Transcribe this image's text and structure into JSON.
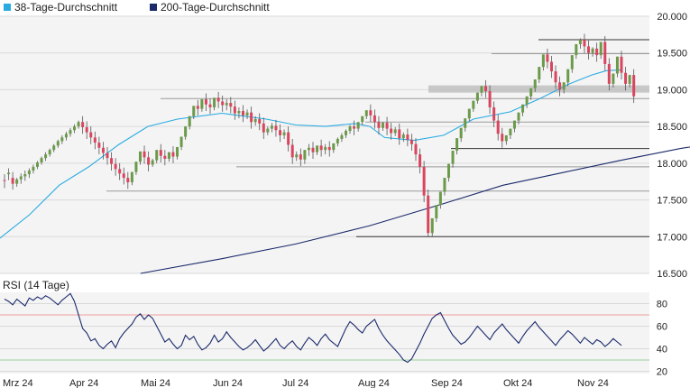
{
  "chart_data": [
    {
      "type": "candlestick",
      "title": "",
      "legend": {
        "placement": "top-left",
        "items": [
          {
            "name": "38-Tage-Durchschnitt",
            "color": "#29abe2"
          },
          {
            "name": "200-Tage-Durchschnitt",
            "color": "#1b2a6b"
          }
        ]
      },
      "y_axis": {
        "ticks": [
          "20.000",
          "19.500",
          "19.000",
          "18.500",
          "18.000",
          "17.500",
          "17.000",
          "16.500"
        ],
        "ylim": [
          16500,
          20000
        ],
        "tick_values": [
          20000,
          19500,
          19000,
          18500,
          18000,
          17500,
          17000,
          16500
        ]
      },
      "x_axis": {
        "labels": [
          "Mrz 24",
          "Apr 24",
          "Mai 24",
          "Jun 24",
          "Jul 24",
          "Aug 24",
          "Sep 24",
          "Okt 24",
          "Nov 24"
        ]
      },
      "colors": {
        "up": "#6b9a4a",
        "down": "#d9455f",
        "grid": "#d9d9d9",
        "support": "#555555",
        "band": "#bdbdbd"
      },
      "horizontal_levels": [
        19680,
        19490,
        19010,
        18880,
        18560,
        18200,
        17950,
        17620,
        17000
      ],
      "ma38_keypoints": [
        [
          0,
          16980
        ],
        [
          20,
          17300
        ],
        [
          40,
          17700
        ],
        [
          60,
          17950
        ],
        [
          80,
          18250
        ],
        [
          100,
          18500
        ],
        [
          120,
          18600
        ],
        [
          150,
          18680
        ],
        [
          180,
          18600
        ],
        [
          200,
          18520
        ],
        [
          220,
          18500
        ],
        [
          240,
          18540
        ],
        [
          250,
          18500
        ],
        [
          260,
          18350
        ],
        [
          280,
          18310
        ],
        [
          300,
          18380
        ],
        [
          320,
          18600
        ],
        [
          345,
          18700
        ],
        [
          365,
          18880
        ],
        [
          385,
          19080
        ],
        [
          400,
          19200
        ],
        [
          410,
          19260
        ],
        [
          420,
          19270
        ]
      ],
      "ma200_keypoints": [
        [
          95,
          16500
        ],
        [
          150,
          16700
        ],
        [
          200,
          16900
        ],
        [
          250,
          17150
        ],
        [
          300,
          17450
        ],
        [
          340,
          17700
        ],
        [
          380,
          17870
        ],
        [
          420,
          18040
        ],
        [
          460,
          18200
        ],
        [
          500,
          18330
        ],
        [
          527,
          18410
        ]
      ],
      "candles": [
        [
          17770,
          17850,
          17760,
          17660
        ],
        [
          17850,
          17930,
          17870,
          17770
        ],
        [
          17800,
          17880,
          17720,
          17640
        ],
        [
          17720,
          17800,
          17780,
          17680
        ],
        [
          17780,
          17860,
          17820,
          17720
        ],
        [
          17820,
          17900,
          17850,
          17760
        ],
        [
          17850,
          17930,
          17900,
          17800
        ],
        [
          17900,
          17980,
          17950,
          17860
        ],
        [
          17950,
          18030,
          18010,
          17920
        ],
        [
          18010,
          18090,
          18070,
          17980
        ],
        [
          18070,
          18150,
          18120,
          18030
        ],
        [
          18120,
          18200,
          18180,
          18090
        ],
        [
          18180,
          18260,
          18240,
          18150
        ],
        [
          18240,
          18320,
          18300,
          18210
        ],
        [
          18300,
          18380,
          18350,
          18260
        ],
        [
          18350,
          18430,
          18400,
          18310
        ],
        [
          18400,
          18480,
          18450,
          18360
        ],
        [
          18450,
          18530,
          18500,
          18410
        ],
        [
          18500,
          18580,
          18560,
          18470
        ],
        [
          18560,
          18640,
          18490,
          18400
        ],
        [
          18490,
          18570,
          18420,
          18330
        ],
        [
          18420,
          18500,
          18350,
          18260
        ],
        [
          18350,
          18430,
          18280,
          18190
        ],
        [
          18280,
          18360,
          18210,
          18120
        ],
        [
          18210,
          18290,
          18140,
          18050
        ],
        [
          18140,
          18220,
          18070,
          17980
        ],
        [
          18070,
          18150,
          17990,
          17900
        ],
        [
          17990,
          18070,
          17920,
          17830
        ],
        [
          17920,
          18000,
          17860,
          17770
        ],
        [
          17860,
          17940,
          17800,
          17710
        ],
        [
          17800,
          17880,
          17740,
          17650
        ],
        [
          17740,
          17820,
          17880,
          17700
        ],
        [
          17880,
          17960,
          18020,
          17840
        ],
        [
          18020,
          18100,
          18160,
          17980
        ],
        [
          18160,
          18240,
          18080,
          17990
        ],
        [
          18080,
          18160,
          17980,
          17890
        ],
        [
          17980,
          18060,
          18040,
          17950
        ],
        [
          18040,
          18120,
          18180,
          18000
        ],
        [
          18180,
          18260,
          18100,
          18010
        ],
        [
          18100,
          18180,
          18060,
          17970
        ],
        [
          18060,
          18140,
          18150,
          18020
        ],
        [
          18150,
          18230,
          18090,
          18000
        ],
        [
          18090,
          18170,
          18220,
          18050
        ],
        [
          18220,
          18300,
          18360,
          18180
        ],
        [
          18360,
          18440,
          18500,
          18320
        ],
        [
          18500,
          18580,
          18640,
          18460
        ],
        [
          18640,
          18720,
          18780,
          18600
        ],
        [
          18780,
          18860,
          18740,
          18650
        ],
        [
          18740,
          18820,
          18870,
          18700
        ],
        [
          18870,
          18950,
          18800,
          18710
        ],
        [
          18800,
          18880,
          18760,
          18670
        ],
        [
          18760,
          18840,
          18890,
          18720
        ],
        [
          18890,
          18970,
          18840,
          18750
        ],
        [
          18840,
          18920,
          18790,
          18700
        ],
        [
          18790,
          18870,
          18820,
          18720
        ],
        [
          18820,
          18900,
          18770,
          18680
        ],
        [
          18770,
          18850,
          18680,
          18590
        ],
        [
          18680,
          18760,
          18710,
          18610
        ],
        [
          18710,
          18790,
          18650,
          18560
        ],
        [
          18650,
          18730,
          18690,
          18600
        ],
        [
          18690,
          18770,
          18560,
          18470
        ],
        [
          18560,
          18640,
          18600,
          18510
        ],
        [
          18600,
          18680,
          18540,
          18450
        ],
        [
          18540,
          18620,
          18420,
          18330
        ],
        [
          18420,
          18500,
          18470,
          18380
        ],
        [
          18470,
          18550,
          18510,
          18420
        ],
        [
          18510,
          18590,
          18450,
          18360
        ],
        [
          18450,
          18530,
          18380,
          18290
        ],
        [
          18380,
          18460,
          18420,
          18330
        ],
        [
          18420,
          18500,
          18250,
          18160
        ],
        [
          18250,
          18330,
          18080,
          17990
        ],
        [
          18080,
          18160,
          18120,
          18030
        ],
        [
          18120,
          18200,
          18050,
          17960
        ],
        [
          18050,
          18130,
          18180,
          17990
        ],
        [
          18180,
          18260,
          18210,
          18100
        ],
        [
          18210,
          18290,
          18150,
          18060
        ],
        [
          18150,
          18230,
          18240,
          18110
        ],
        [
          18240,
          18320,
          18180,
          18090
        ],
        [
          18180,
          18260,
          18220,
          18120
        ],
        [
          18220,
          18300,
          18180,
          18090
        ],
        [
          18180,
          18260,
          18270,
          18140
        ],
        [
          18270,
          18350,
          18330,
          18230
        ],
        [
          18330,
          18410,
          18380,
          18290
        ],
        [
          18380,
          18460,
          18440,
          18340
        ],
        [
          18440,
          18520,
          18500,
          18400
        ],
        [
          18500,
          18580,
          18470,
          18380
        ],
        [
          18470,
          18550,
          18560,
          18430
        ],
        [
          18560,
          18640,
          18640,
          18520
        ],
        [
          18640,
          18720,
          18720,
          18600
        ],
        [
          18720,
          18800,
          18650,
          18560
        ],
        [
          18650,
          18730,
          18560,
          18470
        ],
        [
          18560,
          18640,
          18480,
          18390
        ],
        [
          18480,
          18560,
          18550,
          18440
        ],
        [
          18550,
          18630,
          18470,
          18380
        ],
        [
          18470,
          18550,
          18410,
          18320
        ],
        [
          18410,
          18490,
          18460,
          18370
        ],
        [
          18460,
          18540,
          18340,
          18250
        ],
        [
          18340,
          18420,
          18390,
          18290
        ],
        [
          18390,
          18470,
          18320,
          18230
        ],
        [
          18320,
          18400,
          18260,
          18170
        ],
        [
          18260,
          18340,
          18120,
          18030
        ],
        [
          18120,
          18200,
          17950,
          17860
        ],
        [
          17950,
          18030,
          17560,
          17470
        ],
        [
          17560,
          17640,
          17050,
          17000
        ],
        [
          17050,
          17230,
          17250,
          17010
        ],
        [
          17250,
          17330,
          17430,
          17200
        ],
        [
          17430,
          17510,
          17610,
          17380
        ],
        [
          17610,
          17690,
          17800,
          17560
        ],
        [
          17800,
          17880,
          17990,
          17750
        ],
        [
          17990,
          18070,
          18170,
          17940
        ],
        [
          18170,
          18250,
          18340,
          18120
        ],
        [
          18340,
          18420,
          18480,
          18290
        ],
        [
          18480,
          18560,
          18610,
          18430
        ],
        [
          18610,
          18690,
          18740,
          18570
        ],
        [
          18740,
          18820,
          18850,
          18700
        ],
        [
          18850,
          18930,
          18960,
          18810
        ],
        [
          18960,
          19040,
          19050,
          18910
        ],
        [
          19050,
          19130,
          18980,
          18890
        ],
        [
          18980,
          19060,
          18760,
          18670
        ],
        [
          18760,
          18840,
          18580,
          18490
        ],
        [
          18580,
          18660,
          18400,
          18310
        ],
        [
          18400,
          18480,
          18300,
          18210
        ],
        [
          18300,
          18380,
          18380,
          18250
        ],
        [
          18380,
          18460,
          18470,
          18330
        ],
        [
          18470,
          18550,
          18580,
          18420
        ],
        [
          18580,
          18660,
          18690,
          18530
        ],
        [
          18690,
          18770,
          18800,
          18640
        ],
        [
          18800,
          18880,
          18910,
          18750
        ],
        [
          18910,
          18990,
          19020,
          18860
        ],
        [
          19020,
          19100,
          19140,
          18970
        ],
        [
          19140,
          19220,
          19310,
          19090
        ],
        [
          19310,
          19390,
          19480,
          19260
        ],
        [
          19480,
          19560,
          19380,
          19290
        ],
        [
          19380,
          19460,
          19250,
          19160
        ],
        [
          19250,
          19330,
          19100,
          19010
        ],
        [
          19100,
          19180,
          19000,
          18910
        ],
        [
          19000,
          19080,
          19100,
          18950
        ],
        [
          19100,
          19180,
          19280,
          19050
        ],
        [
          19280,
          19360,
          19470,
          19230
        ],
        [
          19470,
          19550,
          19620,
          19420
        ],
        [
          19620,
          19700,
          19680,
          19560
        ],
        [
          19680,
          19760,
          19590,
          19500
        ],
        [
          19590,
          19670,
          19500,
          19410
        ],
        [
          19500,
          19580,
          19560,
          19450
        ],
        [
          19560,
          19640,
          19470,
          19380
        ],
        [
          19470,
          19550,
          19650,
          19420
        ],
        [
          19650,
          19730,
          19350,
          19260
        ],
        [
          19350,
          19430,
          19080,
          18990
        ],
        [
          19080,
          19160,
          19220,
          19030
        ],
        [
          19220,
          19300,
          19450,
          19170
        ],
        [
          19450,
          19530,
          19230,
          19140
        ],
        [
          19230,
          19310,
          19080,
          18990
        ],
        [
          19080,
          19160,
          19200,
          19030
        ],
        [
          19200,
          19280,
          18910,
          18820
        ]
      ],
      "first_candle_x": 5,
      "candle_spacing": 4.56
    },
    {
      "type": "line",
      "title": "RSI (14 Tage)",
      "series": [
        {
          "name": "RSI (14 Tage)",
          "color": "#1b2a6b"
        }
      ],
      "y_axis": {
        "ticks": [
          "80",
          "60",
          "40",
          "20"
        ],
        "ylim": [
          18,
          90
        ],
        "tick_values": [
          80,
          60,
          40,
          20
        ]
      },
      "reference_lines": [
        {
          "value": 70,
          "color": "#f0a0a0"
        },
        {
          "value": 30,
          "color": "#9bd09b"
        }
      ],
      "values": [
        84,
        82,
        79,
        84,
        81,
        78,
        85,
        83,
        86,
        84,
        87,
        85,
        82,
        79,
        83,
        86,
        89,
        82,
        70,
        58,
        54,
        47,
        49,
        43,
        40,
        44,
        47,
        41,
        49,
        54,
        58,
        62,
        68,
        71,
        66,
        70,
        67,
        60,
        53,
        46,
        49,
        44,
        40,
        43,
        52,
        48,
        51,
        44,
        39,
        41,
        45,
        52,
        46,
        49,
        55,
        50,
        46,
        42,
        39,
        41,
        44,
        48,
        43,
        38,
        41,
        45,
        49,
        43,
        40,
        44,
        47,
        42,
        39,
        45,
        50,
        47,
        43,
        49,
        53,
        48,
        45,
        42,
        50,
        58,
        64,
        61,
        57,
        54,
        60,
        63,
        66,
        58,
        52,
        47,
        43,
        39,
        35,
        30,
        28,
        31,
        38,
        45,
        53,
        60,
        67,
        70,
        72,
        65,
        58,
        52,
        48,
        44,
        46,
        50,
        55,
        60,
        56,
        52,
        48,
        54,
        58,
        62,
        57,
        53,
        49,
        45,
        51,
        56,
        60,
        64,
        59,
        55,
        51,
        47,
        43,
        48,
        52,
        56,
        53,
        49,
        45,
        50,
        47,
        44,
        48,
        46,
        42,
        45,
        49,
        46,
        43
      ]
    }
  ]
}
